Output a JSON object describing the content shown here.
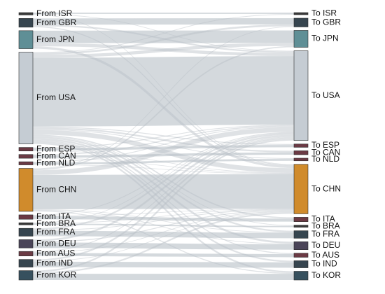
{
  "sources": [
    {
      "id": "ISR",
      "label": "From ISR",
      "color": "#3a3a3a"
    },
    {
      "id": "GBR",
      "label": "From GBR",
      "color": "#36454f"
    },
    {
      "id": "JPN",
      "label": "From JPN",
      "color": "#5f8f96"
    },
    {
      "id": "USA",
      "label": "From USA",
      "color": "#c5ccd3"
    },
    {
      "id": "ESP",
      "label": "From ESP",
      "color": "#6b3a44"
    },
    {
      "id": "CAN",
      "label": "From CAN",
      "color": "#6b3a44"
    },
    {
      "id": "NLD",
      "label": "From NLD",
      "color": "#6b3a44"
    },
    {
      "id": "CHN",
      "label": "From CHN",
      "color": "#d08b2c"
    },
    {
      "id": "ITA",
      "label": "From ITA",
      "color": "#6b3a44"
    },
    {
      "id": "BRA",
      "label": "From BRA",
      "color": "#3a3a3a"
    },
    {
      "id": "FRA",
      "label": "From FRA",
      "color": "#36454f"
    },
    {
      "id": "DEU",
      "label": "From DEU",
      "color": "#4a4458"
    },
    {
      "id": "AUS",
      "label": "From AUS",
      "color": "#6b3a44"
    },
    {
      "id": "IND",
      "label": "From IND",
      "color": "#36454f"
    },
    {
      "id": "KOR",
      "label": "From KOR",
      "color": "#36505e"
    }
  ],
  "targets": [
    {
      "id": "ISR",
      "label": "To ISR",
      "color": "#3a3a3a"
    },
    {
      "id": "GBR",
      "label": "To GBR",
      "color": "#36454f"
    },
    {
      "id": "JPN",
      "label": "To JPN",
      "color": "#5f8f96"
    },
    {
      "id": "USA",
      "label": "To USA",
      "color": "#c5ccd3"
    },
    {
      "id": "ESP",
      "label": "To ESP",
      "color": "#6b3a44"
    },
    {
      "id": "CAN",
      "label": "To CAN",
      "color": "#6b3a44"
    },
    {
      "id": "NLD",
      "label": "To NLD",
      "color": "#6b3a44"
    },
    {
      "id": "CHN",
      "label": "To CHN",
      "color": "#d08b2c"
    },
    {
      "id": "ITA",
      "label": "To ITA",
      "color": "#6b3a44"
    },
    {
      "id": "BRA",
      "label": "To BRA",
      "color": "#3a3a3a"
    },
    {
      "id": "FRA",
      "label": "To FRA",
      "color": "#36454f"
    },
    {
      "id": "DEU",
      "label": "To DEU",
      "color": "#4a4458"
    },
    {
      "id": "AUS",
      "label": "To AUS",
      "color": "#6b3a44"
    },
    {
      "id": "IND",
      "label": "To IND",
      "color": "#36454f"
    },
    {
      "id": "KOR",
      "label": "To KOR",
      "color": "#36505e"
    }
  ],
  "link_color": "#b8bfc6",
  "links": [
    {
      "from": "ISR",
      "to": "ISR",
      "value": 0.8
    },
    {
      "from": "ISR",
      "to": "USA",
      "value": 0.4
    },
    {
      "from": "ISR",
      "to": "CHN",
      "value": 0.3
    },
    {
      "from": "GBR",
      "to": "GBR",
      "value": 4
    },
    {
      "from": "GBR",
      "to": "USA",
      "value": 1
    },
    {
      "from": "GBR",
      "to": "CHN",
      "value": 0.6
    },
    {
      "from": "JPN",
      "to": "JPN",
      "value": 8
    },
    {
      "from": "JPN",
      "to": "USA",
      "value": 2
    },
    {
      "from": "JPN",
      "to": "CHN",
      "value": 1.5
    },
    {
      "from": "USA",
      "to": "USA",
      "value": 44
    },
    {
      "from": "USA",
      "to": "JPN",
      "value": 2
    },
    {
      "from": "USA",
      "to": "GBR",
      "value": 1.2
    },
    {
      "from": "USA",
      "to": "CHN",
      "value": 3
    },
    {
      "from": "USA",
      "to": "DEU",
      "value": 1.2
    },
    {
      "from": "USA",
      "to": "FRA",
      "value": 1
    },
    {
      "from": "USA",
      "to": "KOR",
      "value": 1
    },
    {
      "from": "USA",
      "to": "IND",
      "value": 1
    },
    {
      "from": "USA",
      "to": "CAN",
      "value": 1
    },
    {
      "from": "USA",
      "to": "ITA",
      "value": 0.8
    },
    {
      "from": "USA",
      "to": "ESP",
      "value": 0.6
    },
    {
      "from": "USA",
      "to": "AUS",
      "value": 0.6
    },
    {
      "from": "USA",
      "to": "NLD",
      "value": 0.5
    },
    {
      "from": "USA",
      "to": "BRA",
      "value": 0.4
    },
    {
      "from": "USA",
      "to": "ISR",
      "value": 0.4
    },
    {
      "from": "ESP",
      "to": "ESP",
      "value": 1.5
    },
    {
      "from": "ESP",
      "to": "USA",
      "value": 0.5
    },
    {
      "from": "ESP",
      "to": "CHN",
      "value": 0.3
    },
    {
      "from": "CAN",
      "to": "CAN",
      "value": 1.5
    },
    {
      "from": "CAN",
      "to": "USA",
      "value": 0.6
    },
    {
      "from": "CAN",
      "to": "CHN",
      "value": 0.3
    },
    {
      "from": "NLD",
      "to": "NLD",
      "value": 1.2
    },
    {
      "from": "NLD",
      "to": "USA",
      "value": 0.5
    },
    {
      "from": "NLD",
      "to": "CHN",
      "value": 0.3
    },
    {
      "from": "CHN",
      "to": "CHN",
      "value": 22
    },
    {
      "from": "CHN",
      "to": "USA",
      "value": 3
    },
    {
      "from": "CHN",
      "to": "JPN",
      "value": 0.8
    },
    {
      "from": "CHN",
      "to": "KOR",
      "value": 0.6
    },
    {
      "from": "CHN",
      "to": "DEU",
      "value": 0.4
    },
    {
      "from": "CHN",
      "to": "GBR",
      "value": 0.4
    },
    {
      "from": "CHN",
      "to": "FRA",
      "value": 0.3
    },
    {
      "from": "ITA",
      "to": "ITA",
      "value": 2
    },
    {
      "from": "ITA",
      "to": "USA",
      "value": 0.5
    },
    {
      "from": "ITA",
      "to": "CHN",
      "value": 0.3
    },
    {
      "from": "BRA",
      "to": "BRA",
      "value": 0.8
    },
    {
      "from": "BRA",
      "to": "USA",
      "value": 0.3
    },
    {
      "from": "BRA",
      "to": "CHN",
      "value": 0.2
    },
    {
      "from": "FRA",
      "to": "FRA",
      "value": 3.5
    },
    {
      "from": "FRA",
      "to": "USA",
      "value": 1
    },
    {
      "from": "FRA",
      "to": "CHN",
      "value": 0.5
    },
    {
      "from": "DEU",
      "to": "DEU",
      "value": 3.5
    },
    {
      "from": "DEU",
      "to": "USA",
      "value": 1.2
    },
    {
      "from": "DEU",
      "to": "CHN",
      "value": 0.6
    },
    {
      "from": "AUS",
      "to": "AUS",
      "value": 2
    },
    {
      "from": "AUS",
      "to": "USA",
      "value": 0.5
    },
    {
      "from": "AUS",
      "to": "CHN",
      "value": 0.4
    },
    {
      "from": "IND",
      "to": "IND",
      "value": 3.5
    },
    {
      "from": "IND",
      "to": "USA",
      "value": 1
    },
    {
      "from": "IND",
      "to": "CHN",
      "value": 0.4
    },
    {
      "from": "KOR",
      "to": "KOR",
      "value": 4
    },
    {
      "from": "KOR",
      "to": "USA",
      "value": 1
    },
    {
      "from": "KOR",
      "to": "CHN",
      "value": 1
    }
  ]
}
